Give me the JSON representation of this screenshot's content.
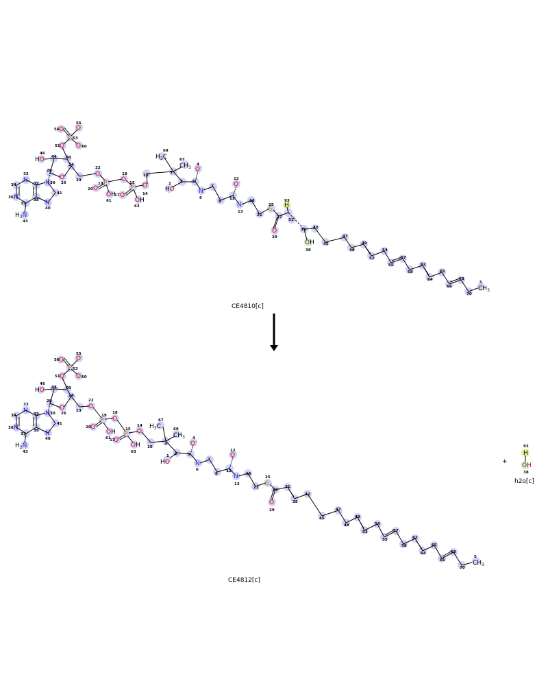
{
  "reaction": {
    "reactant": {
      "label": "CE4810[c]"
    },
    "product_main": {
      "label": "CE4812[c]"
    },
    "product_side": {
      "label": "h2o[c]",
      "atoms": [
        {
          "t": "H",
          "n": "93"
        },
        {
          "t": "OH",
          "n": "38"
        }
      ]
    },
    "plus": "+"
  },
  "colors": {
    "highlight": "#c9c9f5",
    "highlight_green": "#b5f5b5",
    "highlight_yellow": "#f5f5a0",
    "nitrogen": "#3030d0",
    "oxygen": "#e00000",
    "phosphorus": "#d07000",
    "sulfur": "#b0a000"
  },
  "top_atoms": [
    {
      "t": "O",
      "n": "56"
    },
    {
      "t": "O-",
      "n": "55"
    },
    {
      "t": "P",
      "n": "53"
    },
    {
      "t": "O",
      "n": "51"
    },
    {
      "t": "O-",
      "n": "60"
    },
    {
      "t": "HO",
      "n": "46"
    },
    {
      "t": "",
      "n": "44"
    },
    {
      "t": "",
      "n": "50"
    },
    {
      "t": "",
      "n": "28"
    },
    {
      "t": "O",
      "n": "26"
    },
    {
      "t": "",
      "n": "24"
    },
    {
      "t": "",
      "n": "23"
    },
    {
      "t": "N",
      "n": "33"
    },
    {
      "t": "N",
      "n": "34"
    },
    {
      "t": "N",
      "n": "36"
    },
    {
      "t": "",
      "n": "37"
    },
    {
      "t": "N",
      "n": "30"
    },
    {
      "t": "",
      "n": "32"
    },
    {
      "t": "",
      "n": "35"
    },
    {
      "t": "",
      "n": "41"
    },
    {
      "t": "N",
      "n": "40"
    },
    {
      "t": "H2N",
      "n": "43"
    },
    {
      "t": "O",
      "n": "22"
    },
    {
      "t": "P",
      "n": "19"
    },
    {
      "t": "O",
      "n": "20"
    },
    {
      "t": "OH",
      "n": "61"
    },
    {
      "t": "O",
      "n": "18"
    },
    {
      "t": "P",
      "n": "15"
    },
    {
      "t": "O",
      "n": "17"
    },
    {
      "t": "OH",
      "n": "63"
    },
    {
      "t": "O",
      "n": "14"
    },
    {
      "t": "",
      "n": "10"
    },
    {
      "t": "H3C",
      "n": "69"
    },
    {
      "t": "CH3",
      "n": "67"
    },
    {
      "t": "",
      "n": "3"
    },
    {
      "t": "HO",
      "n": "1"
    },
    {
      "t": "",
      "n": "2"
    },
    {
      "t": "O-",
      "n": "4"
    },
    {
      "t": "",
      "n": "5"
    },
    {
      "t": "N",
      "n": "6"
    },
    {
      "t": "",
      "n": "7"
    },
    {
      "t": "",
      "n": "8"
    },
    {
      "t": "O-",
      "n": "12"
    },
    {
      "t": "",
      "n": "11"
    },
    {
      "t": "N",
      "n": "13"
    },
    {
      "t": "",
      "n": "16"
    },
    {
      "t": "",
      "n": "21"
    },
    {
      "t": "S",
      "n": "25"
    },
    {
      "t": "",
      "n": "27"
    },
    {
      "t": "O",
      "n": "29"
    },
    {
      "t": "H",
      "n": "93"
    },
    {
      "t": "",
      "n": "31"
    },
    {
      "t": "",
      "n": "35"
    },
    {
      "t": "OH",
      "n": "38"
    },
    {
      "t": "",
      "n": "42"
    },
    {
      "t": "",
      "n": "45"
    },
    {
      "t": "",
      "n": "47"
    },
    {
      "t": "",
      "n": "48"
    },
    {
      "t": "",
      "n": "49"
    },
    {
      "t": "",
      "n": "52"
    },
    {
      "t": "",
      "n": "54"
    },
    {
      "t": "",
      "n": "55"
    },
    {
      "t": "",
      "n": "57"
    },
    {
      "t": "",
      "n": "58"
    },
    {
      "t": "",
      "n": "62"
    },
    {
      "t": "",
      "n": "64"
    },
    {
      "t": "",
      "n": "65"
    },
    {
      "t": "",
      "n": "66"
    },
    {
      "t": "",
      "n": "68"
    },
    {
      "t": "",
      "n": "70"
    },
    {
      "t": "CH3",
      "n": "5"
    }
  ]
}
